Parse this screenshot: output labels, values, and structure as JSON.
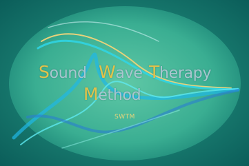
{
  "title_words": [
    "Sound",
    "Wave",
    "Therapy",
    "Method"
  ],
  "abbreviation": "SWTM"
}
